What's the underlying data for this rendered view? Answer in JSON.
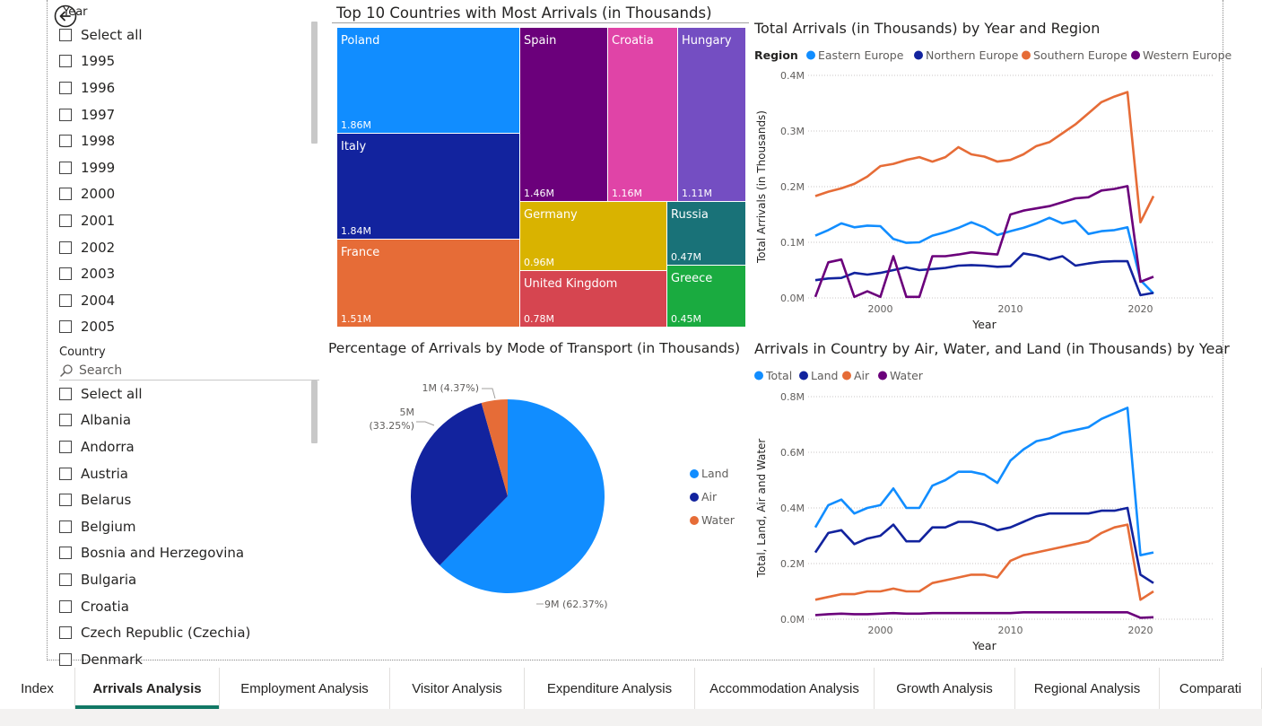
{
  "year_slicer": {
    "title": "Year",
    "items": [
      "Select all",
      "1995",
      "1996",
      "1997",
      "1998",
      "1999",
      "2000",
      "2001",
      "2002",
      "2003",
      "2004",
      "2005"
    ]
  },
  "country_slicer": {
    "title": "Country",
    "search_placeholder": "Search",
    "items": [
      "Select all",
      "Albania",
      "Andorra",
      "Austria",
      "Belarus",
      "Belgium",
      "Bosnia and Herzegovina",
      "Bulgaria",
      "Croatia",
      "Czech Republic (Czechia)",
      "Denmark"
    ]
  },
  "icons": {
    "back": "back-arrow-icon",
    "search": "search-icon"
  },
  "tabs": [
    {
      "label": "Index",
      "active": false
    },
    {
      "label": "Arrivals Analysis",
      "active": true
    },
    {
      "label": "Employment Analysis",
      "active": false
    },
    {
      "label": "Visitor Analysis",
      "active": false
    },
    {
      "label": "Expenditure Analysis",
      "active": false
    },
    {
      "label": "Accommodation Analysis",
      "active": false
    },
    {
      "label": "Growth Analysis",
      "active": false
    },
    {
      "label": "Regional Analysis",
      "active": false
    },
    {
      "label": "Comparati",
      "active": false
    }
  ],
  "chart_data": [
    {
      "type": "treemap",
      "title": "Top 10 Countries with Most Arrivals (in Thousands)",
      "items": [
        {
          "name": "Poland",
          "label": "1.86M",
          "value": 1.86,
          "color": "#118DFF"
        },
        {
          "name": "Italy",
          "label": "1.84M",
          "value": 1.84,
          "color": "#12239E"
        },
        {
          "name": "France",
          "label": "1.51M",
          "value": 1.51,
          "color": "#E66C37"
        },
        {
          "name": "Spain",
          "label": "1.46M",
          "value": 1.46,
          "color": "#6B007B"
        },
        {
          "name": "Croatia",
          "label": "1.16M",
          "value": 1.16,
          "color": "#E044A7"
        },
        {
          "name": "Hungary",
          "label": "1.11M",
          "value": 1.11,
          "color": "#744EC2"
        },
        {
          "name": "Germany",
          "label": "0.96M",
          "value": 0.96,
          "color": "#D9B300"
        },
        {
          "name": "United Kingdom",
          "label": "0.78M",
          "value": 0.78,
          "color": "#D64550"
        },
        {
          "name": "Russia",
          "label": "0.47M",
          "value": 0.47,
          "color": "#197278"
        },
        {
          "name": "Greece",
          "label": "0.45M",
          "value": 0.45,
          "color": "#1AAB40"
        }
      ]
    },
    {
      "type": "line",
      "title": "Total Arrivals (in Thousands) by Year and Region",
      "legend_title": "Region",
      "xlabel": "Year",
      "ylabel": "Total Arrivals (in Thousands)",
      "xlim": [
        1995,
        2021
      ],
      "ylim": [
        0,
        0.4
      ],
      "yticks": [
        0,
        0.1,
        0.2,
        0.3,
        0.4
      ],
      "ytick_labels": [
        "0.0M",
        "0.1M",
        "0.2M",
        "0.3M",
        "0.4M"
      ],
      "xticks": [
        2000,
        2010,
        2020
      ],
      "grid": true,
      "legend_position": "top",
      "x": [
        1995,
        1996,
        1997,
        1998,
        1999,
        2000,
        2001,
        2002,
        2003,
        2004,
        2005,
        2006,
        2007,
        2008,
        2009,
        2010,
        2011,
        2012,
        2013,
        2014,
        2015,
        2016,
        2017,
        2018,
        2019,
        2020,
        2021
      ],
      "series": [
        {
          "name": "Eastern Europe",
          "color": "#118DFF",
          "values": [
            0.112,
            0.122,
            0.134,
            0.127,
            0.13,
            0.129,
            0.106,
            0.099,
            0.1,
            0.112,
            0.118,
            0.126,
            0.136,
            0.127,
            0.113,
            0.12,
            0.126,
            0.134,
            0.144,
            0.134,
            0.139,
            0.115,
            0.12,
            0.122,
            0.127,
            0.032,
            0.008
          ]
        },
        {
          "name": "Northern Europe",
          "color": "#12239E",
          "values": [
            0.032,
            0.035,
            0.036,
            0.045,
            0.042,
            0.045,
            0.05,
            0.055,
            0.05,
            0.052,
            0.054,
            0.058,
            0.059,
            0.058,
            0.056,
            0.057,
            0.08,
            0.076,
            0.069,
            0.075,
            0.058,
            0.062,
            0.065,
            0.066,
            0.066,
            0.005,
            0.009
          ]
        },
        {
          "name": "Southern Europe",
          "color": "#E66C37",
          "values": [
            0.183,
            0.191,
            0.197,
            0.205,
            0.218,
            0.237,
            0.241,
            0.248,
            0.253,
            0.245,
            0.253,
            0.271,
            0.258,
            0.254,
            0.245,
            0.248,
            0.258,
            0.273,
            0.28,
            0.296,
            0.312,
            0.332,
            0.352,
            0.362,
            0.37,
            0.136,
            0.183
          ]
        },
        {
          "name": "Western Europe",
          "color": "#6B007B",
          "values": [
            0.002,
            0.064,
            0.069,
            0.002,
            0.012,
            0.002,
            0.075,
            0.002,
            0.002,
            0.075,
            0.075,
            0.078,
            0.082,
            0.08,
            0.078,
            0.15,
            0.157,
            0.161,
            0.165,
            0.172,
            0.179,
            0.181,
            0.193,
            0.196,
            0.201,
            0.029,
            0.038
          ]
        }
      ]
    },
    {
      "type": "pie",
      "title": "Percentage of Arrivals by Mode of Transport (in Thousands)",
      "legend_position": "right",
      "slices": [
        {
          "name": "Land",
          "value": 62.37,
          "label": "9M (62.37%)",
          "color": "#118DFF"
        },
        {
          "name": "Air",
          "value": 33.25,
          "label_line1": "5M",
          "label_line2": "(33.25%)",
          "color": "#12239E"
        },
        {
          "name": "Water",
          "value": 4.37,
          "label": "1M (4.37%)",
          "color": "#E66C37"
        }
      ]
    },
    {
      "type": "line",
      "title": "Arrivals in Country by Air, Water, and Land (in Thousands) by Year",
      "xlabel": "Year",
      "ylabel": "Total, Land, Air and Water",
      "xlim": [
        1995,
        2021
      ],
      "ylim": [
        0,
        0.8
      ],
      "yticks": [
        0,
        0.2,
        0.4,
        0.6,
        0.8
      ],
      "ytick_labels": [
        "0.0M",
        "0.2M",
        "0.4M",
        "0.6M",
        "0.8M"
      ],
      "xticks": [
        2000,
        2010,
        2020
      ],
      "grid": true,
      "legend_position": "top",
      "x": [
        1995,
        1996,
        1997,
        1998,
        1999,
        2000,
        2001,
        2002,
        2003,
        2004,
        2005,
        2006,
        2007,
        2008,
        2009,
        2010,
        2011,
        2012,
        2013,
        2014,
        2015,
        2016,
        2017,
        2018,
        2019,
        2020,
        2021
      ],
      "series": [
        {
          "name": "Total",
          "color": "#118DFF",
          "values": [
            0.33,
            0.41,
            0.43,
            0.38,
            0.4,
            0.41,
            0.47,
            0.4,
            0.4,
            0.48,
            0.5,
            0.53,
            0.53,
            0.52,
            0.49,
            0.57,
            0.61,
            0.64,
            0.65,
            0.67,
            0.68,
            0.69,
            0.72,
            0.74,
            0.76,
            0.23,
            0.24
          ]
        },
        {
          "name": "Land",
          "color": "#12239E",
          "values": [
            0.24,
            0.31,
            0.32,
            0.27,
            0.29,
            0.3,
            0.34,
            0.28,
            0.28,
            0.33,
            0.33,
            0.35,
            0.35,
            0.34,
            0.32,
            0.33,
            0.35,
            0.37,
            0.38,
            0.38,
            0.38,
            0.38,
            0.39,
            0.39,
            0.4,
            0.16,
            0.13
          ]
        },
        {
          "name": "Air",
          "color": "#E66C37",
          "values": [
            0.07,
            0.08,
            0.09,
            0.09,
            0.1,
            0.1,
            0.11,
            0.1,
            0.1,
            0.13,
            0.14,
            0.15,
            0.16,
            0.16,
            0.15,
            0.21,
            0.23,
            0.24,
            0.25,
            0.26,
            0.27,
            0.28,
            0.31,
            0.33,
            0.34,
            0.07,
            0.1
          ]
        },
        {
          "name": "Water",
          "color": "#6B007B",
          "values": [
            0.015,
            0.018,
            0.02,
            0.018,
            0.018,
            0.02,
            0.022,
            0.02,
            0.02,
            0.022,
            0.022,
            0.022,
            0.022,
            0.022,
            0.022,
            0.022,
            0.025,
            0.025,
            0.025,
            0.025,
            0.025,
            0.025,
            0.025,
            0.025,
            0.025,
            0.005,
            0.007
          ]
        }
      ]
    }
  ]
}
